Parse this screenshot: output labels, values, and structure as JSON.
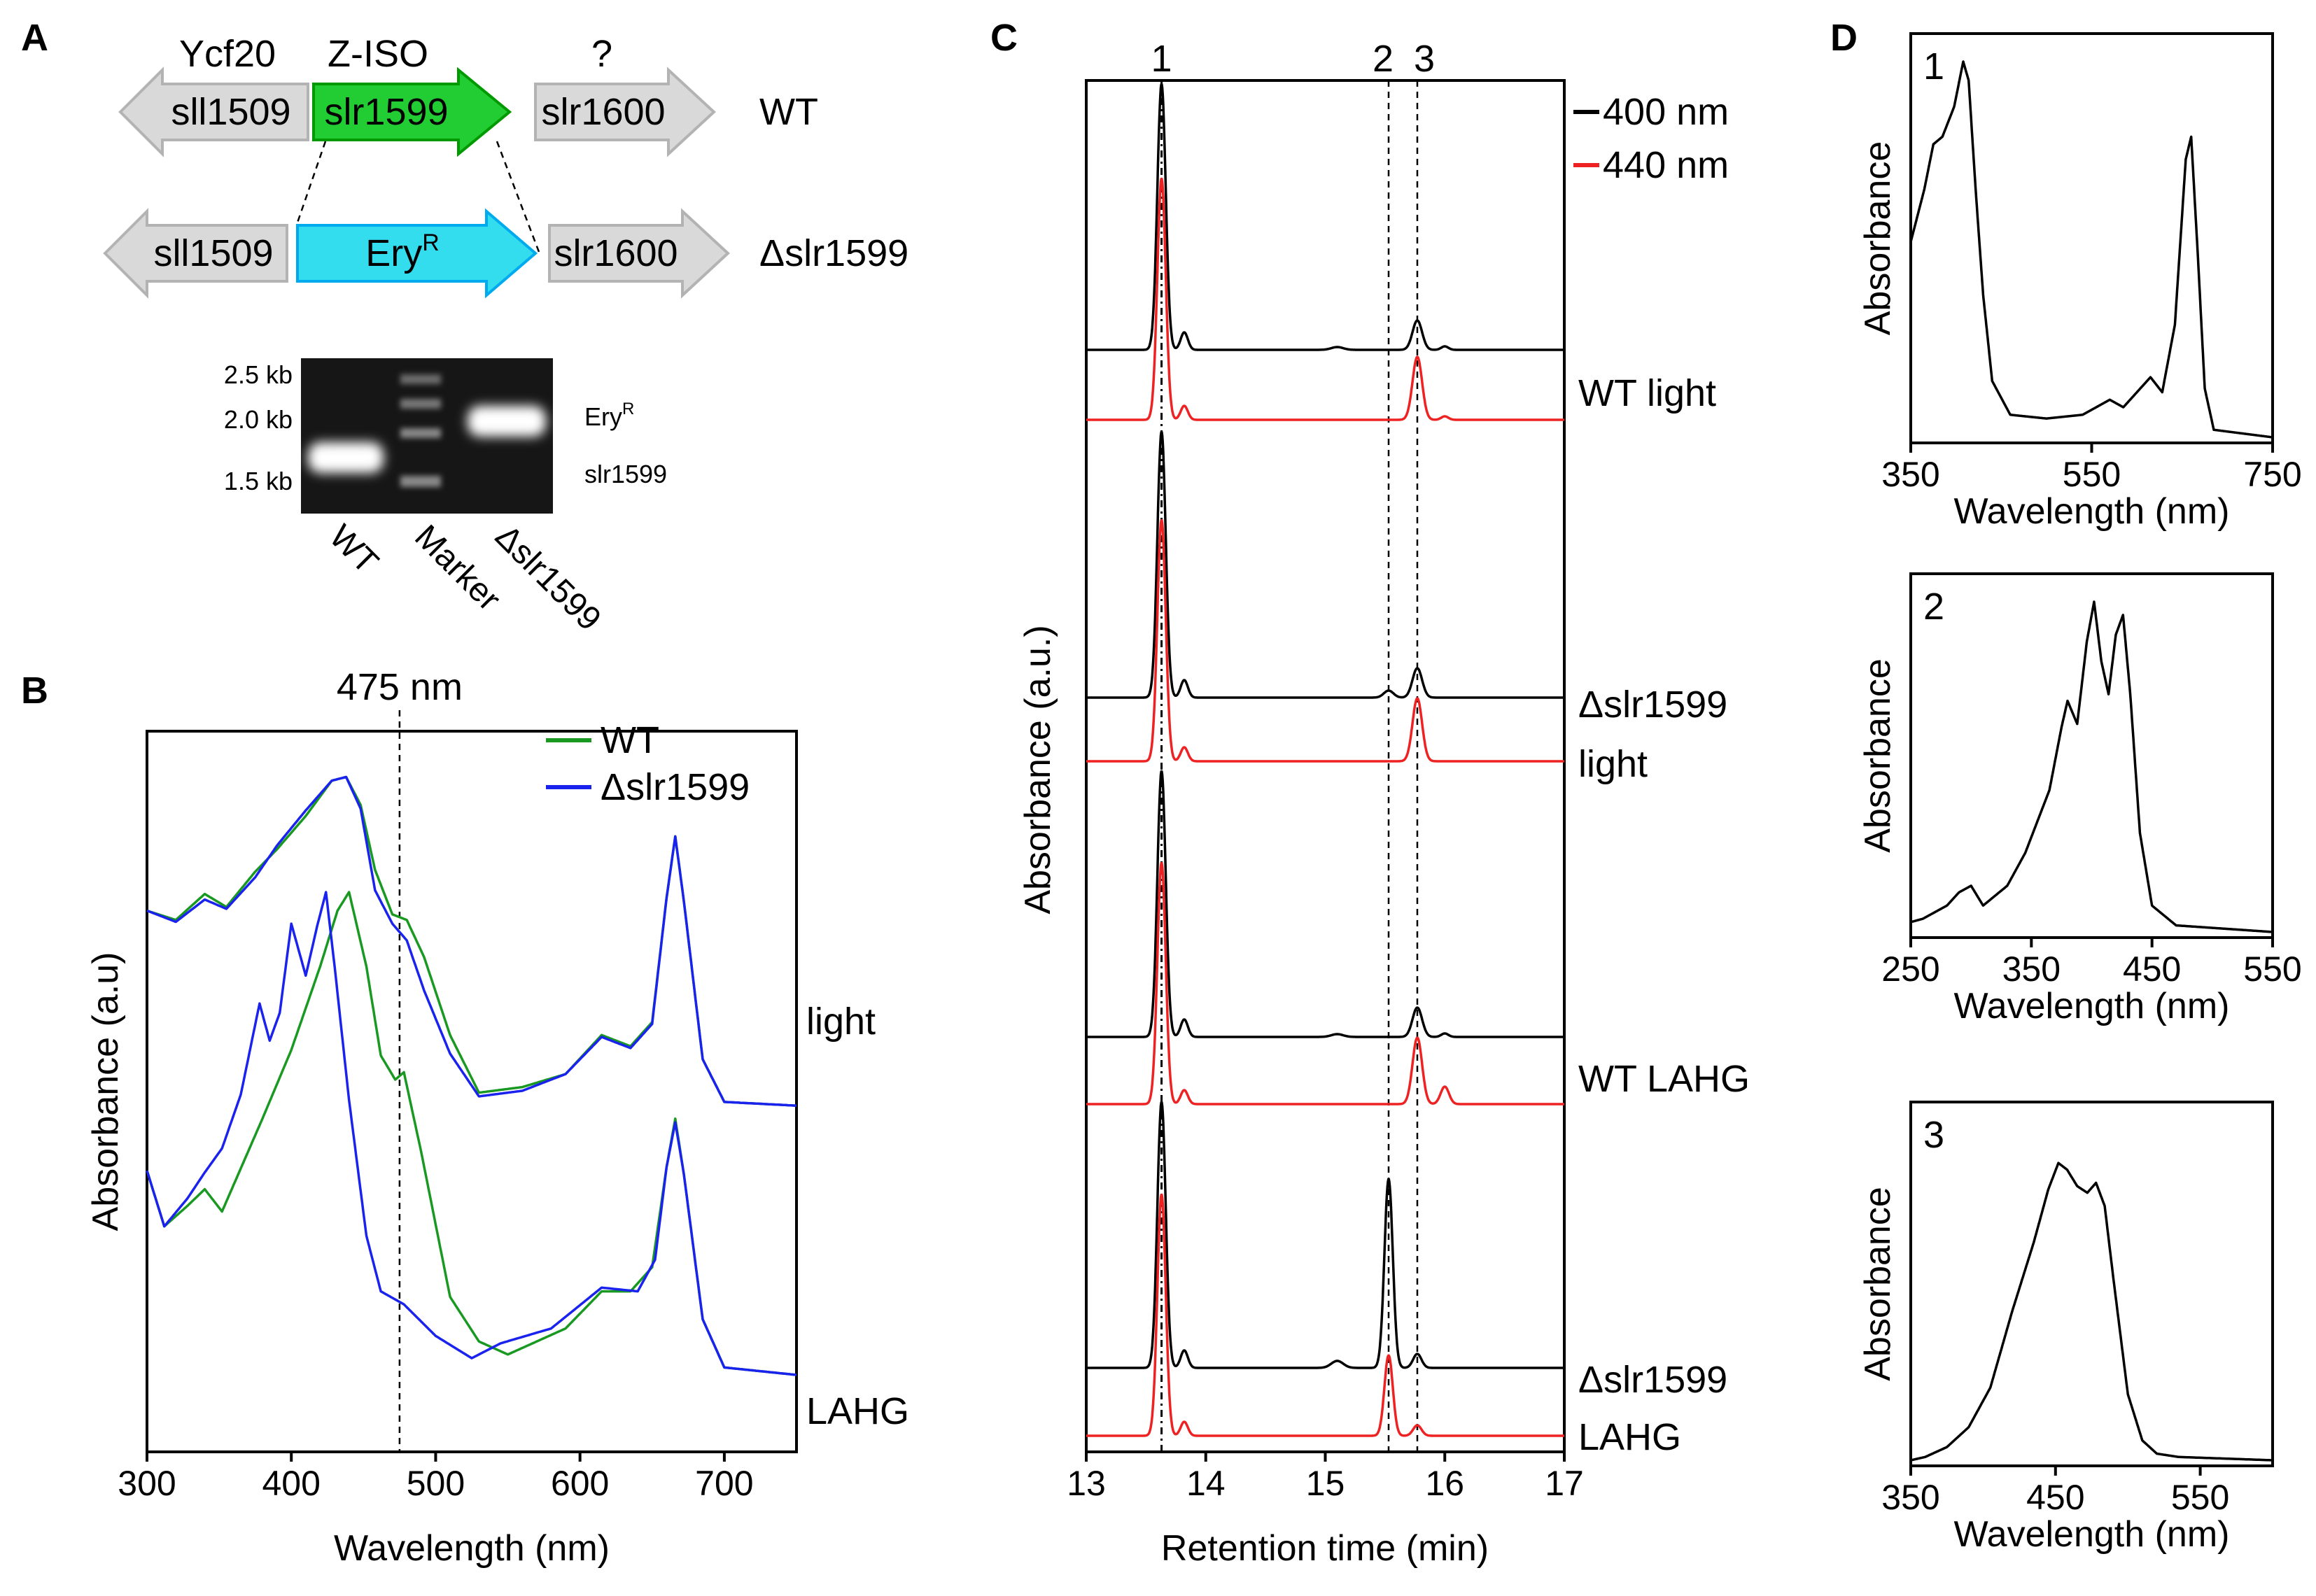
{
  "figure_labels": {
    "A": "A",
    "B": "B",
    "C": "C",
    "D": "D"
  },
  "colors": {
    "gene_gray": "#d9d9d9",
    "gene_gray_stroke": "#b3b3b3",
    "zisofill": "#22cc33",
    "zisostroke": "#009900",
    "eryfill": "#33ddee",
    "erystroke": "#00aaee",
    "wt": "#1a9922",
    "mutant": "#1a22ee",
    "trace400": "#000000",
    "trace440": "#ee2222"
  },
  "panel_a": {
    "wt_row": {
      "genes": [
        {
          "name": "sll1509",
          "function": "Ycf20",
          "direction": "left"
        },
        {
          "name": "slr1599",
          "function": "Z-ISO",
          "direction": "right"
        },
        {
          "name": "slr1600",
          "function": "?",
          "direction": "right"
        }
      ],
      "strain": "WT"
    },
    "mutant_row": {
      "genes": [
        {
          "name": "sll1509",
          "direction": "left"
        },
        {
          "name": "Ery",
          "superscript": "R",
          "direction": "right"
        },
        {
          "name": "slr1600",
          "direction": "right"
        }
      ],
      "strain": "Δslr1599"
    },
    "gel": {
      "size_markers": [
        "2.5 kb",
        "2.0 kb",
        "1.5 kb"
      ],
      "band_labels": {
        "upper": "Ery",
        "upper_sup": "R",
        "lower": "slr1599"
      },
      "lanes": [
        "WT",
        "Marker",
        "Δslr1599"
      ]
    }
  },
  "chart_data": [
    {
      "panel": "B",
      "type": "line",
      "title": "",
      "annotation": "475 nm",
      "xlabel": "Wavelength (nm)",
      "ylabel": "Absorbance (a.u)",
      "xlim": [
        300,
        750
      ],
      "x_ticks": [
        300,
        400,
        500,
        600,
        700
      ],
      "ylim": [
        0,
        3.2
      ],
      "legend": [
        "WT",
        "Δslr1599"
      ],
      "legend_position": "top-right",
      "trace_labels": [
        "light",
        "LAHG"
      ],
      "series": [
        {
          "name": "WT light",
          "offset": 1.45,
          "points": [
            [
              300,
              1.05
            ],
            [
              320,
              1.0
            ],
            [
              340,
              1.14
            ],
            [
              355,
              1.07
            ],
            [
              375,
              1.26
            ],
            [
              390,
              1.38
            ],
            [
              410,
              1.56
            ],
            [
              428,
              1.75
            ],
            [
              438,
              1.77
            ],
            [
              448,
              1.62
            ],
            [
              458,
              1.27
            ],
            [
              470,
              1.03
            ],
            [
              480,
              1.0
            ],
            [
              492,
              0.8
            ],
            [
              510,
              0.38
            ],
            [
              530,
              0.07
            ],
            [
              560,
              0.1
            ],
            [
              590,
              0.17
            ],
            [
              615,
              0.38
            ],
            [
              635,
              0.32
            ],
            [
              650,
              0.45
            ],
            [
              660,
              1.12
            ],
            [
              666,
              1.45
            ],
            [
              672,
              1.1
            ],
            [
              685,
              0.25
            ],
            [
              700,
              0.02
            ],
            [
              750,
              0.0
            ]
          ]
        },
        {
          "name": "Δslr1599 light",
          "offset": 1.45,
          "points": [
            [
              300,
              1.05
            ],
            [
              320,
              0.99
            ],
            [
              340,
              1.11
            ],
            [
              355,
              1.06
            ],
            [
              375,
              1.23
            ],
            [
              390,
              1.4
            ],
            [
              410,
              1.59
            ],
            [
              428,
              1.75
            ],
            [
              438,
              1.77
            ],
            [
              448,
              1.6
            ],
            [
              458,
              1.16
            ],
            [
              470,
              0.98
            ],
            [
              480,
              0.89
            ],
            [
              492,
              0.62
            ],
            [
              510,
              0.28
            ],
            [
              530,
              0.05
            ],
            [
              560,
              0.08
            ],
            [
              590,
              0.17
            ],
            [
              615,
              0.37
            ],
            [
              635,
              0.31
            ],
            [
              650,
              0.44
            ],
            [
              660,
              1.12
            ],
            [
              666,
              1.45
            ],
            [
              672,
              1.1
            ],
            [
              685,
              0.25
            ],
            [
              700,
              0.02
            ],
            [
              750,
              0.0
            ]
          ]
        },
        {
          "name": "WT LAHG",
          "offset": 0.0,
          "points": [
            [
              300,
              1.1
            ],
            [
              312,
              0.8
            ],
            [
              328,
              0.91
            ],
            [
              340,
              1.0
            ],
            [
              352,
              0.88
            ],
            [
              380,
              1.38
            ],
            [
              400,
              1.75
            ],
            [
              420,
              2.2
            ],
            [
              432,
              2.5
            ],
            [
              440,
              2.6
            ],
            [
              452,
              2.2
            ],
            [
              462,
              1.72
            ],
            [
              472,
              1.59
            ],
            [
              478,
              1.63
            ],
            [
              490,
              1.2
            ],
            [
              510,
              0.42
            ],
            [
              530,
              0.18
            ],
            [
              550,
              0.11
            ],
            [
              590,
              0.25
            ],
            [
              615,
              0.45
            ],
            [
              635,
              0.45
            ],
            [
              650,
              0.58
            ],
            [
              660,
              1.12
            ],
            [
              666,
              1.38
            ],
            [
              672,
              1.08
            ],
            [
              685,
              0.3
            ],
            [
              700,
              0.04
            ],
            [
              750,
              0.0
            ]
          ]
        },
        {
          "name": "Δslr1599 LAHG",
          "offset": 0.0,
          "points": [
            [
              300,
              1.1
            ],
            [
              312,
              0.8
            ],
            [
              328,
              0.95
            ],
            [
              340,
              1.09
            ],
            [
              352,
              1.22
            ],
            [
              365,
              1.51
            ],
            [
              378,
              2.0
            ],
            [
              385,
              1.8
            ],
            [
              392,
              1.95
            ],
            [
              400,
              2.43
            ],
            [
              410,
              2.15
            ],
            [
              418,
              2.42
            ],
            [
              424,
              2.6
            ],
            [
              430,
              2.2
            ],
            [
              440,
              1.48
            ],
            [
              452,
              0.75
            ],
            [
              462,
              0.45
            ],
            [
              478,
              0.38
            ],
            [
              500,
              0.21
            ],
            [
              525,
              0.09
            ],
            [
              545,
              0.17
            ],
            [
              580,
              0.25
            ],
            [
              615,
              0.47
            ],
            [
              640,
              0.45
            ],
            [
              652,
              0.62
            ],
            [
              660,
              1.12
            ],
            [
              666,
              1.36
            ],
            [
              672,
              1.08
            ],
            [
              685,
              0.3
            ],
            [
              700,
              0.04
            ],
            [
              750,
              0.0
            ]
          ]
        }
      ]
    },
    {
      "panel": "C",
      "type": "line",
      "xlabel": "Retention time (min)",
      "ylabel": "Absorbance (a.u.)",
      "xlim": [
        13,
        17
      ],
      "x_ticks": [
        13,
        14,
        15,
        16,
        17
      ],
      "peak_labels": [
        {
          "label": "1",
          "x": 13.63
        },
        {
          "label": "2",
          "x": 15.53
        },
        {
          "label": "3",
          "x": 15.77
        }
      ],
      "legend": [
        "400 nm",
        "440 nm"
      ],
      "legend_position": "top-right",
      "trace_labels": [
        "WT light",
        "Δslr1599",
        "light",
        "WT LAHG",
        "Δslr1599",
        "LAHG"
      ],
      "series": [
        {
          "name": "WT light 400 nm",
          "peaks": [
            [
              13.63,
              380,
              0.035
            ],
            [
              13.82,
              25,
              0.03
            ],
            [
              15.1,
              4,
              0.05
            ],
            [
              15.77,
              42,
              0.04
            ],
            [
              16.0,
              5,
              0.03
            ]
          ]
        },
        {
          "name": "WT light 440 nm",
          "peaks": [
            [
              13.63,
              345,
              0.035
            ],
            [
              13.82,
              20,
              0.03
            ],
            [
              15.77,
              90,
              0.04
            ],
            [
              16.0,
              5,
              0.03
            ]
          ]
        },
        {
          "name": "Δslr1599 light 400 nm",
          "peaks": [
            [
              13.63,
              380,
              0.035
            ],
            [
              13.82,
              25,
              0.03
            ],
            [
              15.53,
              10,
              0.04
            ],
            [
              15.77,
              42,
              0.04
            ]
          ]
        },
        {
          "name": "Δslr1599 light 440 nm",
          "peaks": [
            [
              13.63,
              345,
              0.035
            ],
            [
              13.82,
              20,
              0.03
            ],
            [
              15.77,
              90,
              0.04
            ]
          ]
        },
        {
          "name": "WT LAHG 400 nm",
          "peaks": [
            [
              13.63,
              380,
              0.035
            ],
            [
              13.82,
              25,
              0.03
            ],
            [
              15.1,
              4,
              0.05
            ],
            [
              15.77,
              42,
              0.04
            ],
            [
              16.0,
              5,
              0.03
            ]
          ]
        },
        {
          "name": "WT LAHG 440 nm",
          "peaks": [
            [
              13.63,
              345,
              0.035
            ],
            [
              13.82,
              20,
              0.03
            ],
            [
              15.77,
              95,
              0.04
            ],
            [
              16.0,
              25,
              0.035
            ]
          ]
        },
        {
          "name": "Δslr1599 LAHG 400 nm",
          "peaks": [
            [
              13.63,
              380,
              0.035
            ],
            [
              13.82,
              25,
              0.03
            ],
            [
              15.1,
              10,
              0.05
            ],
            [
              15.53,
              270,
              0.035
            ],
            [
              15.77,
              20,
              0.035
            ]
          ]
        },
        {
          "name": "Δslr1599 LAHG 440 nm",
          "peaks": [
            [
              13.63,
              345,
              0.035
            ],
            [
              13.82,
              20,
              0.03
            ],
            [
              15.53,
              115,
              0.035
            ],
            [
              15.77,
              15,
              0.035
            ]
          ]
        }
      ]
    },
    {
      "panel": "D1",
      "type": "line",
      "label": "1",
      "xlabel": "Wavelength (nm)",
      "ylabel": "Absorbance",
      "xlim": [
        350,
        750
      ],
      "x_ticks": [
        350,
        550,
        750
      ],
      "points": [
        [
          350,
          0.52
        ],
        [
          365,
          0.66
        ],
        [
          375,
          0.78
        ],
        [
          385,
          0.8
        ],
        [
          398,
          0.88
        ],
        [
          408,
          1.0
        ],
        [
          414,
          0.95
        ],
        [
          422,
          0.65
        ],
        [
          430,
          0.38
        ],
        [
          440,
          0.15
        ],
        [
          460,
          0.06
        ],
        [
          500,
          0.05
        ],
        [
          540,
          0.06
        ],
        [
          570,
          0.1
        ],
        [
          585,
          0.08
        ],
        [
          600,
          0.12
        ],
        [
          615,
          0.16
        ],
        [
          628,
          0.12
        ],
        [
          642,
          0.3
        ],
        [
          654,
          0.74
        ],
        [
          660,
          0.8
        ],
        [
          667,
          0.5
        ],
        [
          675,
          0.13
        ],
        [
          685,
          0.02
        ],
        [
          750,
          0.0
        ]
      ]
    },
    {
      "panel": "D2",
      "type": "line",
      "label": "2",
      "xlabel": "Wavelength (nm)",
      "ylabel": "Absorbance",
      "xlim": [
        250,
        550
      ],
      "x_ticks": [
        250,
        350,
        450,
        550
      ],
      "points": [
        [
          250,
          0.03
        ],
        [
          260,
          0.04
        ],
        [
          280,
          0.08
        ],
        [
          290,
          0.12
        ],
        [
          300,
          0.14
        ],
        [
          310,
          0.08
        ],
        [
          330,
          0.14
        ],
        [
          345,
          0.24
        ],
        [
          365,
          0.43
        ],
        [
          375,
          0.62
        ],
        [
          380,
          0.7
        ],
        [
          388,
          0.63
        ],
        [
          396,
          0.88
        ],
        [
          402,
          1.0
        ],
        [
          408,
          0.82
        ],
        [
          414,
          0.72
        ],
        [
          420,
          0.9
        ],
        [
          426,
          0.96
        ],
        [
          432,
          0.72
        ],
        [
          440,
          0.3
        ],
        [
          450,
          0.08
        ],
        [
          470,
          0.02
        ],
        [
          550,
          0.0
        ]
      ]
    },
    {
      "panel": "D3",
      "type": "line",
      "label": "3",
      "xlabel": "Wavelength (nm)",
      "ylabel": "Absorbance",
      "xlim": [
        350,
        600
      ],
      "x_ticks": [
        350,
        450,
        550
      ],
      "points": [
        [
          350,
          0.0
        ],
        [
          360,
          0.01
        ],
        [
          375,
          0.04
        ],
        [
          390,
          0.1
        ],
        [
          405,
          0.22
        ],
        [
          420,
          0.45
        ],
        [
          435,
          0.66
        ],
        [
          445,
          0.82
        ],
        [
          452,
          0.9
        ],
        [
          458,
          0.88
        ],
        [
          465,
          0.83
        ],
        [
          472,
          0.81
        ],
        [
          478,
          0.84
        ],
        [
          484,
          0.77
        ],
        [
          490,
          0.55
        ],
        [
          500,
          0.2
        ],
        [
          510,
          0.06
        ],
        [
          520,
          0.02
        ],
        [
          535,
          0.01
        ],
        [
          600,
          0.0
        ]
      ]
    }
  ]
}
